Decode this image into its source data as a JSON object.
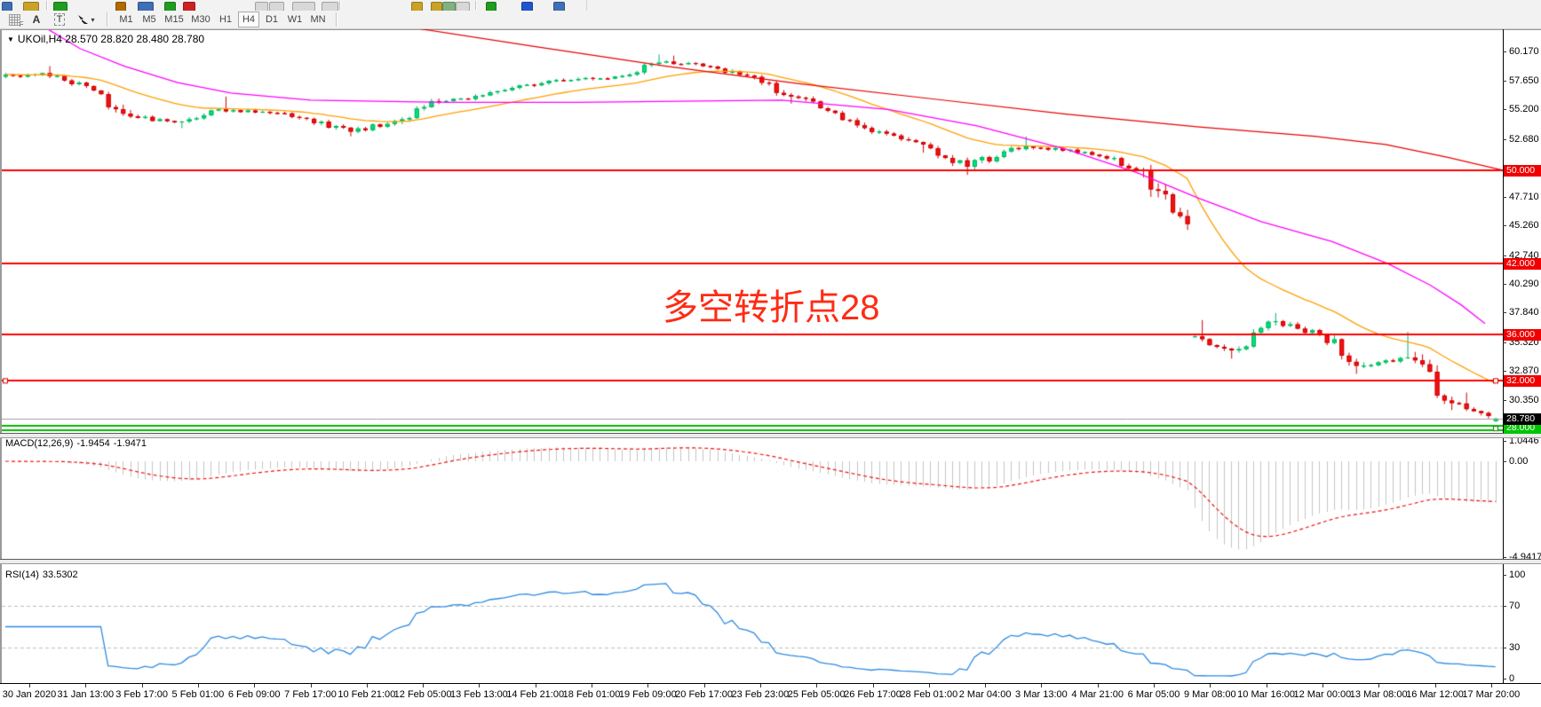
{
  "toolbar": {
    "row1_icons": [
      {
        "name": "chart-window-icon",
        "x": 2,
        "w": 10,
        "color": "#3f6fb5"
      },
      {
        "name": "zoom-icon",
        "x": 26,
        "w": 16,
        "color": "#c9a227"
      },
      {
        "name": "new-chart-icon",
        "x": 60,
        "w": 14,
        "color": "#1f9d1f"
      },
      {
        "name": "dot-icon",
        "x": 130,
        "w": 10,
        "color": "#b06a00"
      },
      {
        "name": "panel-icon",
        "x": 155,
        "w": 16,
        "color": "#3f6fb5"
      },
      {
        "name": "arrow-icon",
        "x": 185,
        "w": 11,
        "color": "#1f9d1f"
      },
      {
        "name": "stop-icon",
        "x": 206,
        "w": 12,
        "color": "#cc2222"
      },
      {
        "name": "tile-cascade-icon",
        "x": 287,
        "w": 13,
        "color": "#d8d8d8"
      },
      {
        "name": "tile-horizontal-icon",
        "x": 303,
        "w": 15,
        "color": "#d8d8d8"
      },
      {
        "name": "tile-vertical-icon",
        "x": 329,
        "w": 24,
        "color": "#d8d8d8"
      },
      {
        "name": "tile-windows-icon",
        "x": 362,
        "w": 17,
        "color": "#d8d8d8"
      },
      {
        "name": "cursor-icon",
        "x": 463,
        "w": 11,
        "color": "#c9a227"
      },
      {
        "name": "crosshair-icon",
        "x": 485,
        "w": 11,
        "color": "#c9a227"
      },
      {
        "name": "objects-icon",
        "x": 498,
        "w": 13,
        "color": "#7fb27f"
      },
      {
        "name": "templates-icon",
        "x": 513,
        "w": 14,
        "color": "#d8d8d8"
      },
      {
        "name": "candles-icon",
        "x": 547,
        "w": 10,
        "color": "#1f9d1f"
      },
      {
        "name": "indicators-icon",
        "x": 587,
        "w": 11,
        "color": "#2255cc"
      },
      {
        "name": "line-chart-icon",
        "x": 623,
        "w": 11,
        "color": "#3f6fb5"
      }
    ],
    "row1_separators": [
      52,
      382,
      535
    ],
    "tools": {
      "snap_grid_label": "F",
      "font_label": "A",
      "text_label": "T",
      "object_caret": "▾"
    },
    "timeframes": {
      "options": [
        "M1",
        "M5",
        "M15",
        "M30",
        "H1",
        "H4",
        "D1",
        "W1",
        "MN"
      ],
      "active": "H4"
    }
  },
  "chart": {
    "title": {
      "dropdown_glyph": "▼",
      "text": "UKOil,H4 28.570 28.820 28.480 28.780"
    },
    "annotation": {
      "text": "多空转折点28",
      "color": "#ff2b14"
    },
    "price_axis": {
      "plain_ticks": [
        "60.170",
        "57.650",
        "55.200",
        "52.680",
        "47.710",
        "45.260",
        "42.740",
        "40.290",
        "37.840",
        "35.320",
        "32.870",
        "30.350"
      ],
      "plain_tick_values": [
        60.17,
        57.65,
        55.2,
        52.68,
        47.71,
        45.26,
        42.74,
        40.29,
        37.84,
        35.32,
        32.87,
        30.35
      ],
      "level_badges": [
        {
          "label": "50.000",
          "price": 50.0,
          "bg": "#f00000"
        },
        {
          "label": "42.000",
          "price": 42.0,
          "bg": "#f00000"
        },
        {
          "label": "36.000",
          "price": 36.0,
          "bg": "#f00000"
        },
        {
          "label": "32.000",
          "price": 32.0,
          "bg": "#f00000"
        },
        {
          "label": "28.000",
          "price": 28.0,
          "bg": "#00c400"
        }
      ],
      "current_price_badge": {
        "label": "28.780",
        "price": 28.78,
        "bg": "#000000"
      }
    },
    "time_axis": [
      "30 Jan 2020",
      "31 Jan 13:00",
      "3 Feb 17:00",
      "5 Feb 01:00",
      "6 Feb 09:00",
      "7 Feb 17:00",
      "10 Feb 21:00",
      "12 Feb 05:00",
      "13 Feb 13:00",
      "14 Feb 21:00",
      "18 Feb 01:00",
      "19 Feb 09:00",
      "20 Feb 17:00",
      "23 Feb 23:00",
      "25 Feb 05:00",
      "26 Feb 17:00",
      "28 Feb 01:00",
      "2 Mar 04:00",
      "3 Mar 13:00",
      "4 Mar 21:00",
      "6 Mar 05:00",
      "9 Mar 08:00",
      "10 Mar 16:00",
      "12 Mar 00:00",
      "13 Mar 08:00",
      "16 Mar 12:00",
      "17 Mar 20:00"
    ]
  },
  "indicators": {
    "macd": {
      "name": "MACD(12,26,9)",
      "value_main": "-1.9454",
      "value_signal": "-1.9471",
      "axis_labels": [
        {
          "text": "1.0446",
          "value": 1.0446
        },
        {
          "text": "0.00",
          "value": 0.0
        },
        {
          "text": "-4.9417",
          "value": -4.9417
        }
      ]
    },
    "rsi": {
      "name": "RSI(14)",
      "value": "33.5302",
      "axis_labels": [
        {
          "text": "100",
          "value": 100
        },
        {
          "text": "70",
          "value": 70
        },
        {
          "text": "30",
          "value": 30
        },
        {
          "text": "0",
          "value": 0
        }
      ]
    }
  },
  "chart_data": {
    "type": "candlestick",
    "instrument": "UKOil",
    "timeframe": "H4",
    "title": "UKOil,H4 28.570 28.820 28.480 28.780",
    "ylim": [
      27.55,
      62.05
    ],
    "visible_range": {
      "start": "30 Jan 2020",
      "end": "17 Mar 2020"
    },
    "daily_anchors": [
      {
        "date": "30 Jan",
        "close": 58.3
      },
      {
        "date": "31 Jan",
        "close": 57.2,
        "high": 58.9
      },
      {
        "date": "3 Feb",
        "close": 54.6
      },
      {
        "date": "4 Feb",
        "close": 54.1
      },
      {
        "date": "5 Feb",
        "close": 55.2,
        "low": 53.6
      },
      {
        "date": "6 Feb",
        "close": 55.0,
        "high": 56.3
      },
      {
        "date": "7 Feb",
        "close": 54.4
      },
      {
        "date": "10 Feb",
        "close": 53.3,
        "low": 52.9
      },
      {
        "date": "11 Feb",
        "close": 54.2
      },
      {
        "date": "12 Feb",
        "close": 55.9
      },
      {
        "date": "13 Feb",
        "close": 56.4
      },
      {
        "date": "14 Feb",
        "close": 57.3
      },
      {
        "date": "17 Feb",
        "close": 57.7
      },
      {
        "date": "18 Feb",
        "close": 58.0
      },
      {
        "date": "19 Feb",
        "close": 59.2,
        "high": 59.9
      },
      {
        "date": "20 Feb",
        "close": 58.9,
        "high": 59.8
      },
      {
        "date": "21 Feb",
        "close": 58.1
      },
      {
        "date": "24 Feb",
        "close": 56.3,
        "low": 55.7
      },
      {
        "date": "25 Feb",
        "close": 54.9
      },
      {
        "date": "26 Feb",
        "close": 53.3
      },
      {
        "date": "27 Feb",
        "close": 52.2,
        "low": 51.5
      },
      {
        "date": "28 Feb",
        "close": 50.3,
        "low": 49.6
      },
      {
        "date": "2 Mar",
        "close": 51.9
      },
      {
        "date": "3 Mar",
        "close": 51.9,
        "high": 52.9
      },
      {
        "date": "4 Mar",
        "close": 51.2
      },
      {
        "date": "5 Mar",
        "close": 50.0,
        "low": 49.4
      },
      {
        "date": "6 Mar",
        "close": 45.4,
        "low": 44.9
      },
      {
        "date": "9 Mar",
        "close": 34.6,
        "open": 35.8,
        "low": 33.9,
        "high": 37.2
      },
      {
        "date": "10 Mar",
        "close": 37.1,
        "high": 37.8
      },
      {
        "date": "11 Mar",
        "close": 35.9
      },
      {
        "date": "12 Mar",
        "close": 33.3,
        "low": 32.6
      },
      {
        "date": "13 Mar",
        "close": 34.0,
        "high": 36.2
      },
      {
        "date": "16 Mar",
        "close": 30.1,
        "low": 29.5
      },
      {
        "date": "17 Mar",
        "close": 28.78,
        "low": 28.2,
        "high": 31.0
      }
    ],
    "last_candle": {
      "open": 28.57,
      "high": 28.82,
      "low": 28.48,
      "close": 28.78
    },
    "horizontal_lines": [
      50.0,
      42.0,
      36.0,
      32.0
    ],
    "green_band_price": 28.0,
    "current_price": 28.78,
    "ma_fast_orange": {
      "type": "ema",
      "period": 21,
      "color": "#ff9f00"
    },
    "ma_mid_magenta": {
      "color": "#ff00ff",
      "points": [
        [
          55,
          62.0
        ],
        [
          90,
          60.4
        ],
        [
          140,
          58.9
        ],
        [
          200,
          57.5
        ],
        [
          260,
          56.6
        ],
        [
          350,
          56.0
        ],
        [
          500,
          55.8
        ],
        [
          650,
          55.8
        ],
        [
          880,
          56.0
        ],
        [
          1000,
          55.2
        ],
        [
          1100,
          53.8
        ],
        [
          1200,
          51.8
        ],
        [
          1280,
          49.8
        ],
        [
          1350,
          47.6
        ],
        [
          1420,
          45.6
        ],
        [
          1500,
          43.9
        ],
        [
          1563,
          42.0
        ],
        [
          1610,
          40.2
        ],
        [
          1645,
          38.5
        ],
        [
          1672,
          36.9
        ]
      ]
    },
    "ma_slow_red": {
      "color": "#e80000",
      "points": [
        [
          455,
          62.3
        ],
        [
          600,
          60.6
        ],
        [
          750,
          58.9
        ],
        [
          900,
          57.4
        ],
        [
          1050,
          56.1
        ],
        [
          1200,
          54.8
        ],
        [
          1350,
          53.7
        ],
        [
          1480,
          52.9
        ],
        [
          1560,
          52.2
        ],
        [
          1630,
          51.1
        ],
        [
          1692,
          50.0
        ]
      ]
    },
    "macd": {
      "params": [
        12,
        26,
        9
      ],
      "last_main": -1.9454,
      "last_signal": -1.9471,
      "axis_max": 1.0446,
      "axis_min": -4.9417,
      "histogram_color": "#c4c4c4",
      "signal_color": "#ee1111"
    },
    "rsi": {
      "period": 14,
      "last": 33.5302,
      "levels": [
        70,
        30
      ],
      "line_color": "#2d8ae0"
    },
    "candle_colors": {
      "up_fill": "#00e17c",
      "up_stroke": "#00b35f",
      "down_fill": "#f31212",
      "down_stroke": "#cc0000"
    },
    "line_colors": {
      "sr_red": "#ff0000",
      "green_band": "#00b800",
      "current_gray": "#a0a0a0"
    }
  }
}
